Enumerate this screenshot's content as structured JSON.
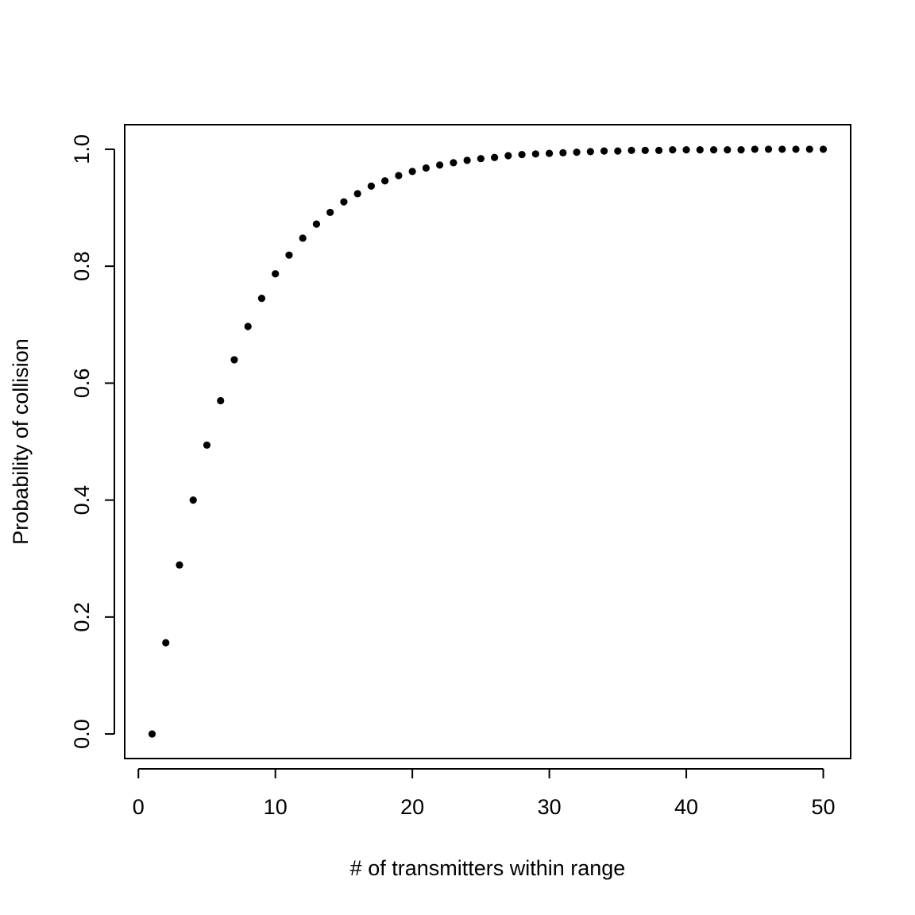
{
  "chart_data": {
    "type": "scatter",
    "title": "",
    "xlabel": "# of transmitters within range",
    "ylabel": "Probability of collision",
    "xlim": [
      -1,
      52
    ],
    "ylim": [
      -0.042,
      1.042
    ],
    "x_ticks": [
      0,
      10,
      20,
      30,
      40,
      50
    ],
    "x_tick_labels": [
      "0",
      "10",
      "20",
      "30",
      "40",
      "50"
    ],
    "y_ticks": [
      0.0,
      0.2,
      0.4,
      0.6,
      0.8,
      1.0
    ],
    "y_tick_labels": [
      "0.0",
      "0.2",
      "0.4",
      "0.6",
      "0.8",
      "1.0"
    ],
    "grid": false,
    "legend": "none",
    "marker_color": "#000000",
    "series": [
      {
        "x": [
          1,
          2,
          3,
          4,
          5,
          6,
          7,
          8,
          9,
          10,
          11,
          12,
          13,
          14,
          15,
          16,
          17,
          18,
          19,
          20,
          21,
          22,
          23,
          24,
          25,
          26,
          27,
          28,
          29,
          30,
          31,
          32,
          33,
          34,
          35,
          36,
          37,
          38,
          39,
          40,
          41,
          42,
          43,
          44,
          45,
          46,
          47,
          48,
          49,
          50
        ],
        "values": [
          0.0,
          0.156,
          0.289,
          0.4,
          0.494,
          0.57,
          0.64,
          0.697,
          0.745,
          0.787,
          0.819,
          0.848,
          0.872,
          0.892,
          0.91,
          0.924,
          0.937,
          0.946,
          0.955,
          0.962,
          0.968,
          0.973,
          0.977,
          0.981,
          0.984,
          0.986,
          0.989,
          0.991,
          0.992,
          0.993,
          0.994,
          0.995,
          0.996,
          0.997,
          0.997,
          0.998,
          0.998,
          0.998,
          0.999,
          0.999,
          0.999,
          0.999,
          0.999,
          0.999,
          1.0,
          1.0,
          1.0,
          1.0,
          1.0,
          1.0
        ]
      }
    ]
  }
}
